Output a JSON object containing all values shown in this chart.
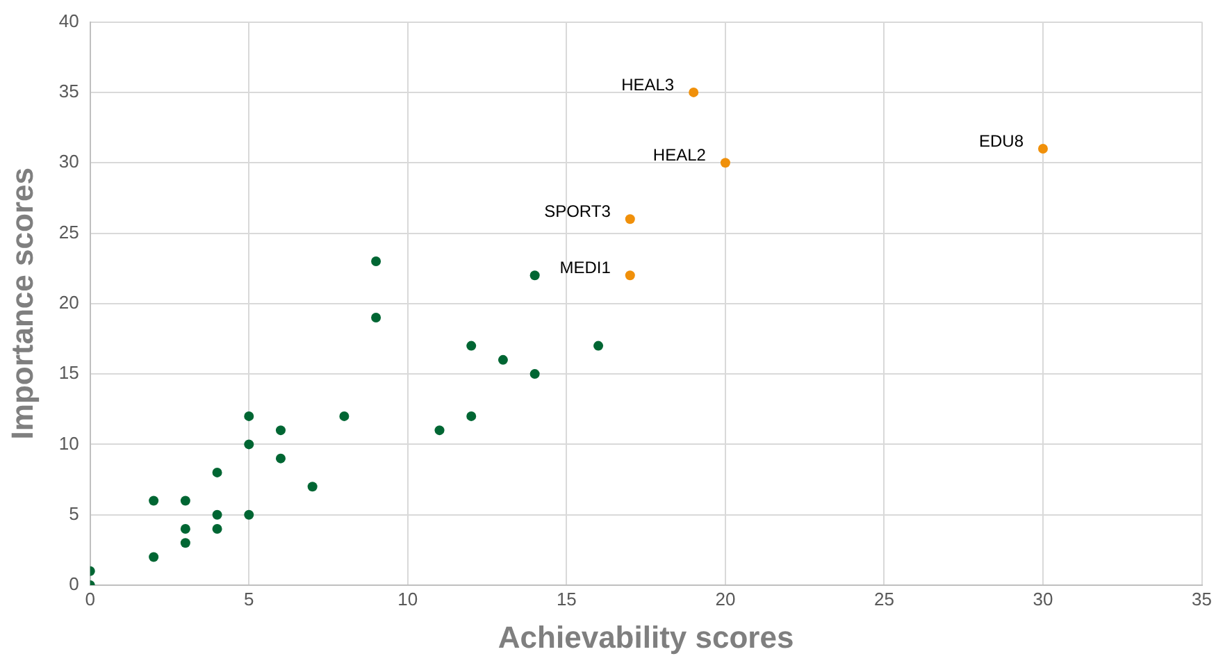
{
  "chart_data": {
    "type": "scatter",
    "xlabel": "Achievability scores",
    "ylabel": "Importance scores",
    "xlim": [
      0,
      35
    ],
    "xticks": [
      0,
      5,
      10,
      15,
      20,
      25,
      30,
      35
    ],
    "ylim": [
      0,
      40
    ],
    "yticks": [
      0,
      5,
      10,
      15,
      20,
      25,
      30,
      35,
      40
    ],
    "grid": true,
    "legend": false,
    "marker": "circle",
    "series": [
      {
        "color": "#006633",
        "x": [
          0,
          0,
          2,
          2,
          3,
          3,
          3,
          4,
          4,
          4,
          5,
          5,
          5,
          6,
          6,
          7,
          8,
          9,
          9,
          11,
          12,
          12,
          13,
          14,
          14,
          16
        ],
        "values": [
          0,
          1,
          2,
          6,
          3,
          4,
          6,
          4,
          5,
          8,
          5,
          10,
          12,
          9,
          11,
          7,
          12,
          19,
          23,
          11,
          12,
          17,
          16,
          15,
          22,
          17
        ]
      },
      {
        "color": "#f0900a",
        "x": [
          17,
          17,
          19,
          20,
          30
        ],
        "values": [
          22,
          26,
          35,
          30,
          31
        ]
      }
    ],
    "annotations": [
      {
        "text": "MEDI1",
        "x": 17,
        "y": 22
      },
      {
        "text": "SPORT3",
        "x": 17,
        "y": 26
      },
      {
        "text": "HEAL3",
        "x": 19,
        "y": 35
      },
      {
        "text": "HEAL2",
        "x": 20,
        "y": 30
      },
      {
        "text": "EDU8",
        "x": 30,
        "y": 31
      }
    ]
  }
}
